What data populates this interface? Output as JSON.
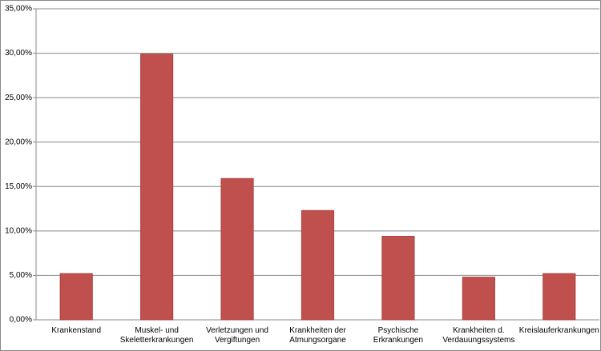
{
  "chart_data": {
    "type": "bar",
    "categories": [
      "Krankenstand",
      "Muskel- und\nSkeletterkrankungen",
      "Verletzungen und\nVergiftungen",
      "Krankheiten der\nAtmungsorgane",
      "Psychische\nErkrankungen",
      "Krankheiten d.\nVerdauungssystems",
      "Kreislauferkrankungen"
    ],
    "values": [
      5.2,
      29.9,
      15.9,
      12.3,
      9.4,
      4.8,
      5.2
    ],
    "color": "#c0504d",
    "ylim": [
      0,
      35
    ],
    "yticks": [
      {
        "value": 0,
        "label": "0,00%"
      },
      {
        "value": 5,
        "label": "5,00%"
      },
      {
        "value": 10,
        "label": "10,00%"
      },
      {
        "value": 15,
        "label": "15,00%"
      },
      {
        "value": 20,
        "label": "20,00%"
      },
      {
        "value": 25,
        "label": "25,00%"
      },
      {
        "value": 30,
        "label": "30,00%"
      },
      {
        "value": 35,
        "label": "35,00%"
      }
    ],
    "grid": true
  }
}
